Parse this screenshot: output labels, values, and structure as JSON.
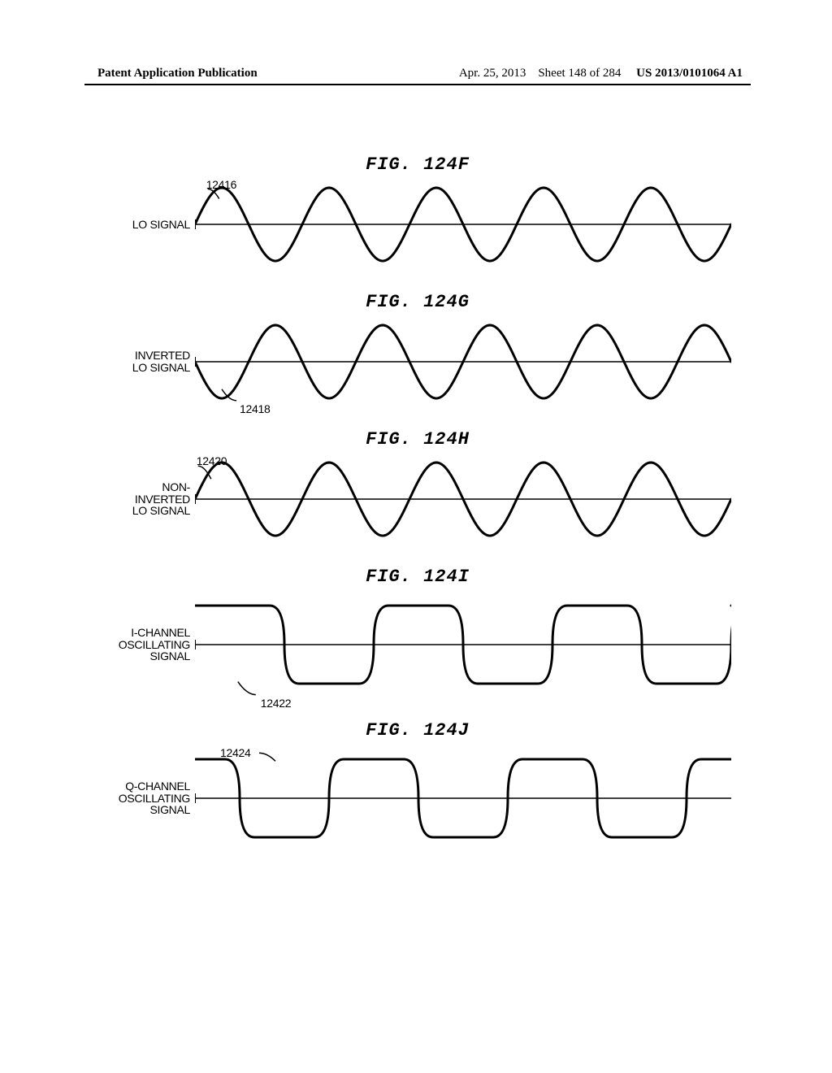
{
  "header": {
    "left": "Patent Application Publication",
    "date": "Apr. 25, 2013",
    "sheet": "Sheet 148 of 284",
    "pubnum": "US 2013/0101064 A1"
  },
  "layout": {
    "wave_width": 660,
    "sine_height": 110,
    "square_height": 130,
    "label_width": 130,
    "stroke": "#000000",
    "stroke_width": 3,
    "sine_cycles": 5,
    "sine_amplitude": 45,
    "sine_phases": {
      "F": 0,
      "G": 180,
      "H": 0
    },
    "square_cycles": 3,
    "square_amplitude": 48,
    "square_phase": {
      "I": 0,
      "J": 90
    },
    "square_corner_radius": 18
  },
  "figures": [
    {
      "id": "F",
      "title": "FIG.  124F",
      "label": "LO SIGNAL",
      "type": "sine",
      "phase_key": "F",
      "callout": {
        "text": "12416",
        "pos": "top-left-arc"
      }
    },
    {
      "id": "G",
      "title": "FIG.  124G",
      "label": "INVERTED\nLO SIGNAL",
      "type": "sine",
      "phase_key": "G",
      "callout": {
        "text": "12418",
        "pos": "bottom-left-arc"
      }
    },
    {
      "id": "H",
      "title": "FIG.  124H",
      "label": "NON-\nINVERTED\nLO SIGNAL",
      "type": "sine",
      "phase_key": "H",
      "callout": {
        "text": "12420",
        "pos": "top-left-arc-outside"
      }
    },
    {
      "id": "I",
      "title": "FIG.  124I",
      "label": "I-CHANNEL\nOSCILLATING\nSIGNAL",
      "type": "square",
      "phase_key": "I",
      "callout": {
        "text": "12422",
        "pos": "below-first-low"
      }
    },
    {
      "id": "J",
      "title": "FIG.  124J",
      "label": "Q-CHANNEL\nOSCILLATING\nSIGNAL",
      "type": "square",
      "phase_key": "J",
      "callout": {
        "text": "12424",
        "pos": "above-first-high"
      }
    }
  ]
}
